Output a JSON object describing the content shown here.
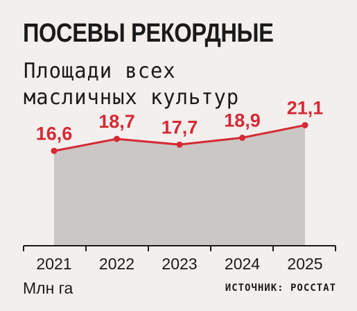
{
  "header": {
    "title": "ПОСЕВЫ РЕКОРДНЫЕ",
    "subtitle": "Площади всех масличных культур"
  },
  "footer": {
    "unit": "Млн га",
    "source": "ИСТОЧНИК: РОССТАТ"
  },
  "colors": {
    "line": "#d42a34",
    "area": "#cbc7c4",
    "axis": "#1a1a1a",
    "background": "#f3efed"
  },
  "chart_data": {
    "type": "area",
    "categories": [
      "2021",
      "2022",
      "2023",
      "2024",
      "2025"
    ],
    "values": [
      16.6,
      18.7,
      17.7,
      18.9,
      21.1
    ],
    "value_labels": [
      "16,6",
      "18,7",
      "17,7",
      "18,9",
      "21,1"
    ],
    "title": "ПОСЕВЫ РЕКОРДНЫЕ",
    "subtitle": "Площади всех масличных культур",
    "ylabel": "Млн га",
    "ylim": [
      0,
      26
    ],
    "grid": false,
    "legend": "none"
  }
}
